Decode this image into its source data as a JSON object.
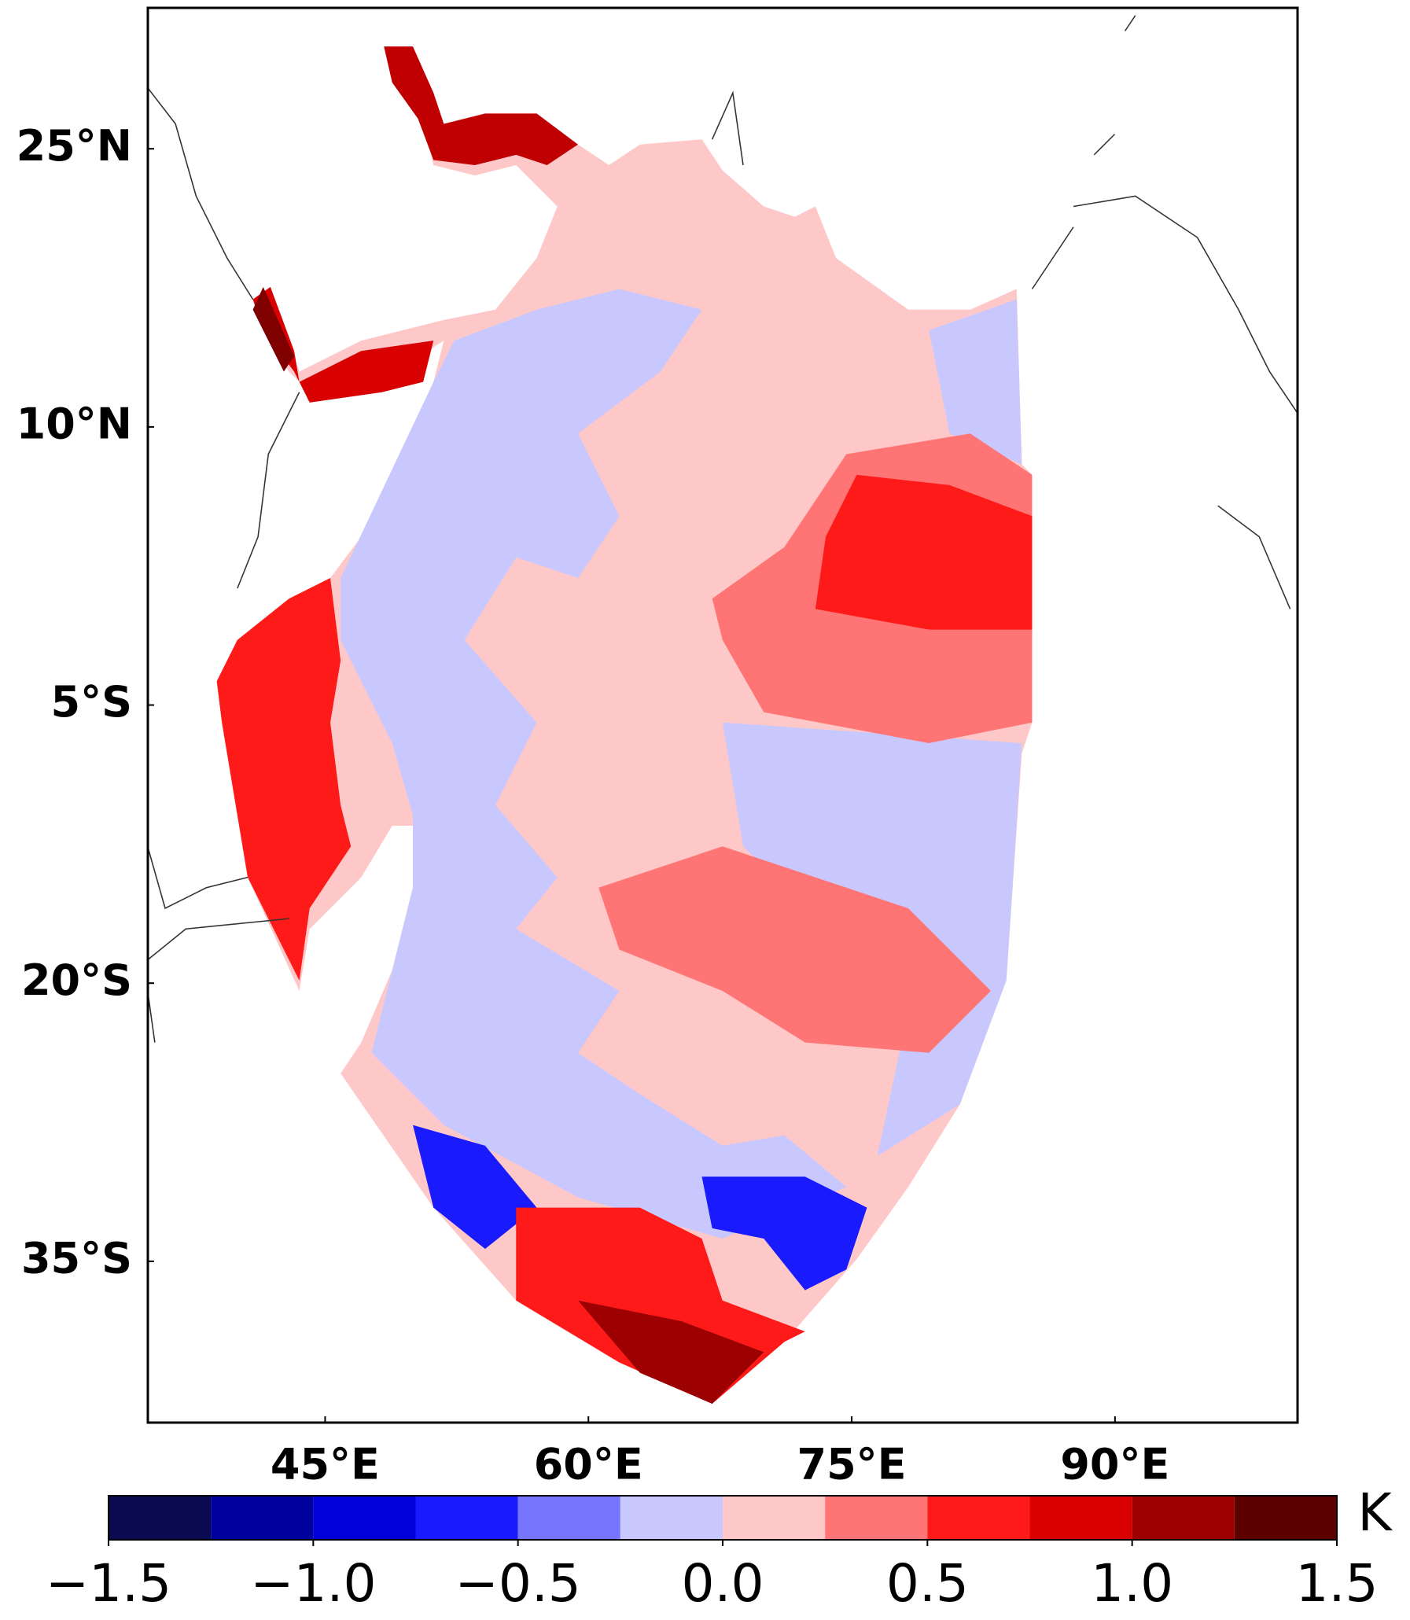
{
  "chart_data": {
    "type": "map",
    "xlim": [
      34.9,
      100.4
    ],
    "xticks": [
      {
        "value": 45,
        "label": "45°E"
      },
      {
        "value": 60,
        "label": "60°E"
      },
      {
        "value": 75,
        "label": "75°E"
      },
      {
        "value": 90,
        "label": "90°E"
      }
    ],
    "ylim": [
      -43.7,
      32.6
    ],
    "yticks": [
      {
        "value": 25,
        "label": "25°N"
      },
      {
        "value": 10,
        "label": "10°N"
      },
      {
        "value": -5,
        "label": "5°S"
      },
      {
        "value": -20,
        "label": "20°S"
      },
      {
        "value": -35,
        "label": "35°S"
      }
    ],
    "colorbar": {
      "label": "K",
      "bounds": [
        -1.5,
        -1.25,
        -1.0,
        -0.75,
        -0.5,
        -0.25,
        0.0,
        0.25,
        0.5,
        0.75,
        1.0,
        1.25,
        1.5
      ],
      "colors": [
        "#0a0a50",
        "#00009c",
        "#0000d8",
        "#1a1aff",
        "#7575ff",
        "#c8c8ff",
        "#ffc8c8",
        "#ff7575",
        "#ff1a1a",
        "#d80000",
        "#9c0000",
        "#5c0000"
      ],
      "ticks": [
        {
          "value": -1.5,
          "label": "−1.5"
        },
        {
          "value": -1.0,
          "label": "−1.0"
        },
        {
          "value": -0.5,
          "label": "−0.5"
        },
        {
          "value": 0.0,
          "label": "0.0"
        },
        0.5,
        {
          "value": 1.0,
          "label": "1.0"
        },
        1.5
      ]
    }
  }
}
